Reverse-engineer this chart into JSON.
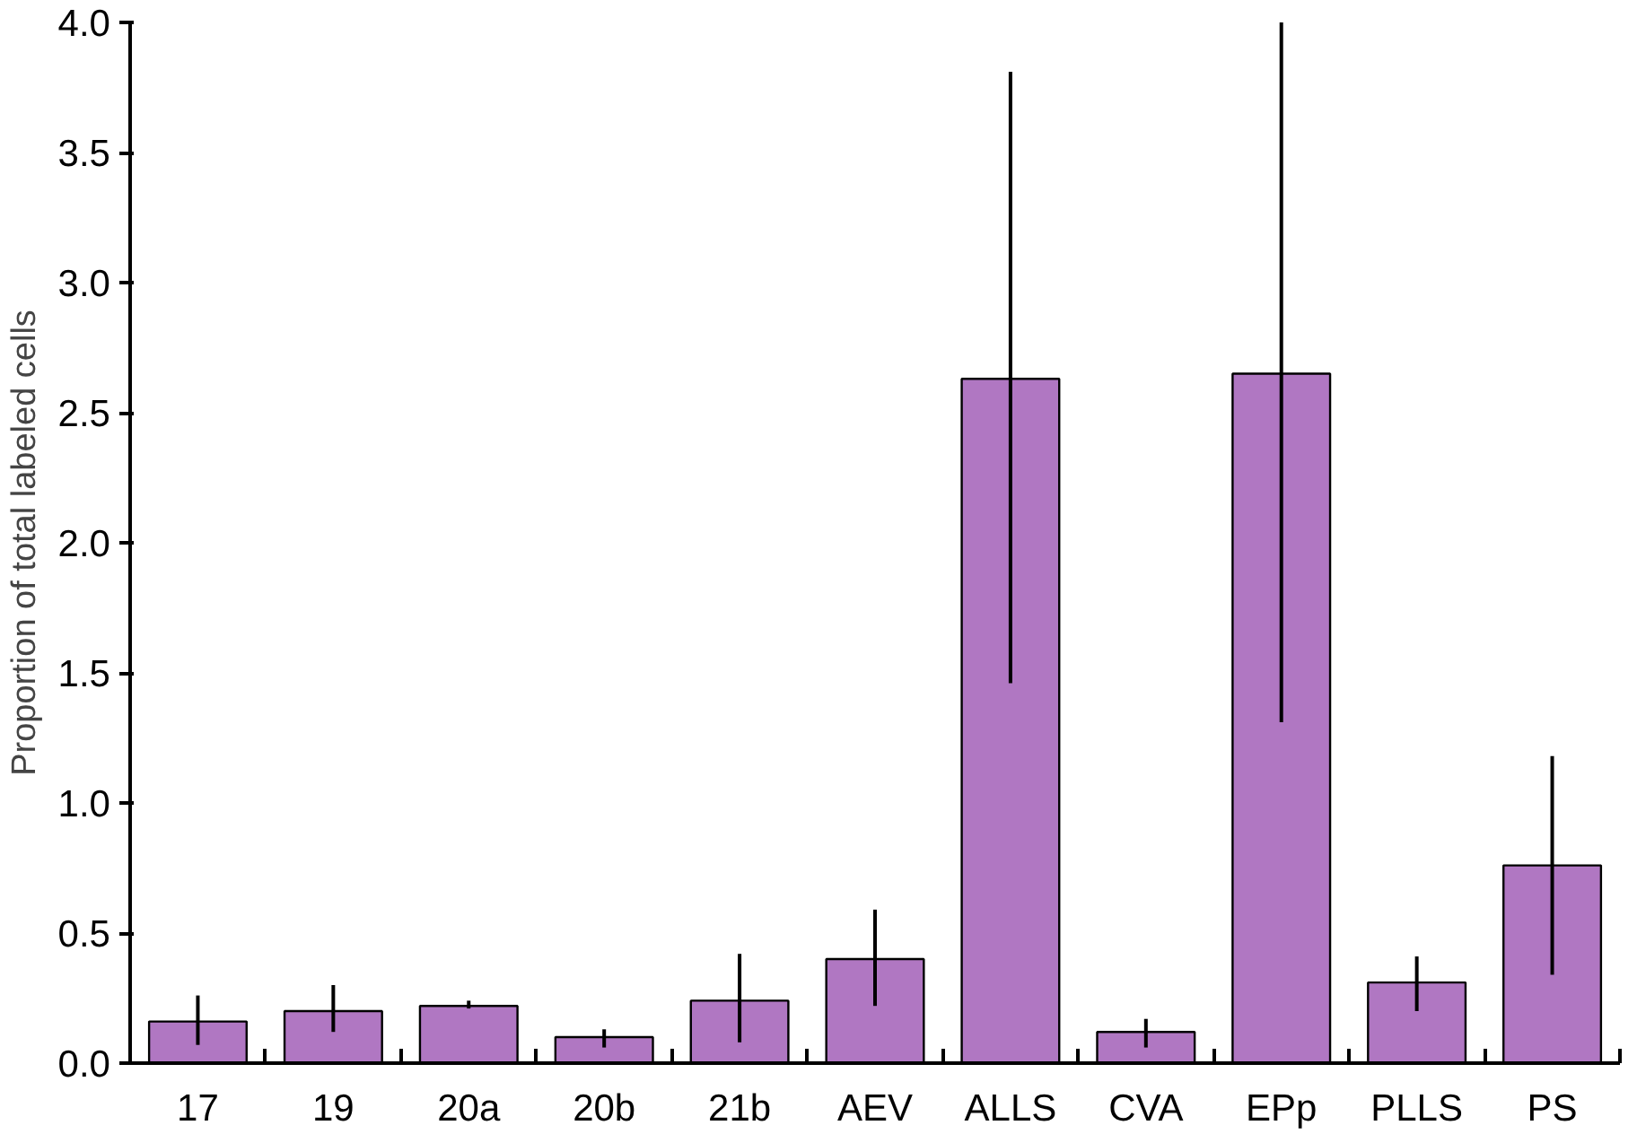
{
  "chart_data": {
    "type": "bar",
    "ylabel": "Proportion of total labeled cells",
    "categories": [
      "17",
      "19",
      "20a",
      "20b",
      "21b",
      "AEV",
      "ALLS",
      "CVA",
      "EPp",
      "PLLS",
      "PS"
    ],
    "values": [
      0.16,
      0.2,
      0.22,
      0.1,
      0.24,
      0.4,
      2.63,
      0.12,
      2.65,
      0.31,
      0.76
    ],
    "errors": [
      [
        0.07,
        0.26
      ],
      [
        0.12,
        0.3
      ],
      [
        0.21,
        0.24
      ],
      [
        0.06,
        0.13
      ],
      [
        0.08,
        0.42
      ],
      [
        0.22,
        0.59
      ],
      [
        1.46,
        3.81
      ],
      [
        0.06,
        0.17
      ],
      [
        1.31,
        4.0
      ],
      [
        0.2,
        0.41
      ],
      [
        0.34,
        1.18
      ]
    ],
    "color": "#b077c2",
    "ylim": [
      0,
      4.0
    ],
    "yticks": [
      {
        "value": 0,
        "label": "0.0"
      },
      0.5,
      {
        "value": 1,
        "label": "1.0"
      },
      1.5,
      {
        "value": 2,
        "label": "2.0"
      },
      2.5,
      {
        "value": 3,
        "label": "3.0"
      },
      3.5,
      {
        "value": 4,
        "label": "4.0"
      }
    ],
    "grid": false
  }
}
